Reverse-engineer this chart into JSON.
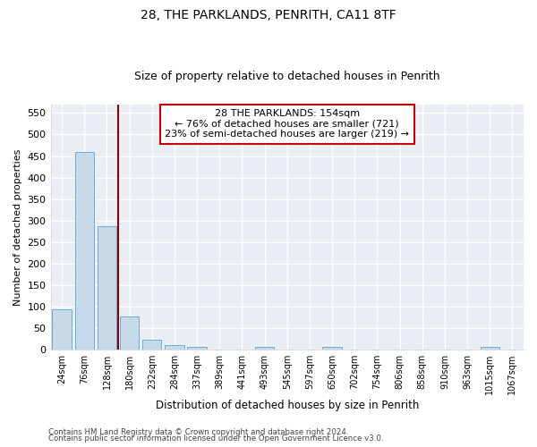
{
  "title1": "28, THE PARKLANDS, PENRITH, CA11 8TF",
  "title2": "Size of property relative to detached houses in Penrith",
  "xlabel": "Distribution of detached houses by size in Penrith",
  "ylabel": "Number of detached properties",
  "footnote1": "Contains HM Land Registry data © Crown copyright and database right 2024.",
  "footnote2": "Contains public sector information licensed under the Open Government Licence v3.0.",
  "annotation_line1": "28 THE PARKLANDS: 154sqm",
  "annotation_line2": "← 76% of detached houses are smaller (721)",
  "annotation_line3": "23% of semi-detached houses are larger (219) →",
  "bar_color": "#c6d9e8",
  "bar_edge_color": "#6aaed6",
  "vline_color": "#8b0000",
  "annotation_box_edge": "#c00000",
  "categories": [
    "24sqm",
    "76sqm",
    "128sqm",
    "180sqm",
    "232sqm",
    "284sqm",
    "337sqm",
    "389sqm",
    "441sqm",
    "493sqm",
    "545sqm",
    "597sqm",
    "650sqm",
    "702sqm",
    "754sqm",
    "806sqm",
    "858sqm",
    "910sqm",
    "963sqm",
    "1015sqm",
    "1067sqm"
  ],
  "values": [
    93,
    460,
    287,
    78,
    23,
    10,
    6,
    0,
    0,
    6,
    0,
    0,
    6,
    0,
    0,
    0,
    0,
    0,
    0,
    6,
    0
  ],
  "ylim": [
    0,
    570
  ],
  "yticks": [
    0,
    50,
    100,
    150,
    200,
    250,
    300,
    350,
    400,
    450,
    500,
    550
  ],
  "vline_x_index": 2.5,
  "fig_bg_color": "#ffffff",
  "plot_bg_color": "#e8eef4",
  "grid_color": "#ffffff"
}
